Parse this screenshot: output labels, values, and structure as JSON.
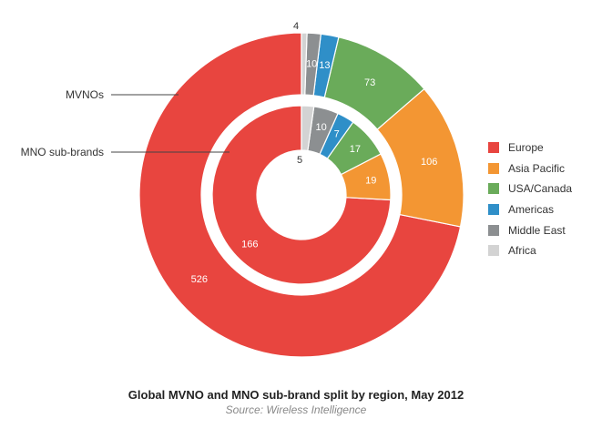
{
  "chart_data": {
    "type": "donut",
    "categories": [
      "Europe",
      "Asia Pacific",
      "USA/Canada",
      "Americas",
      "Middle East",
      "Africa"
    ],
    "series": [
      {
        "name": "MVNOs",
        "ring": "outer",
        "values": [
          526,
          106,
          73,
          13,
          10,
          4
        ]
      },
      {
        "name": "MNO sub-brands",
        "ring": "inner",
        "values": [
          166,
          19,
          17,
          7,
          10,
          5
        ]
      }
    ],
    "colors": [
      "#e8453f",
      "#f39633",
      "#6aab5a",
      "#2f8fc8",
      "#8c8f91",
      "#d3d3d3"
    ],
    "legend_position": "right",
    "title": "Global MVNO and MNO sub-brand split by region, May 2012",
    "subtitle": "Source: Wireless Intelligence"
  }
}
